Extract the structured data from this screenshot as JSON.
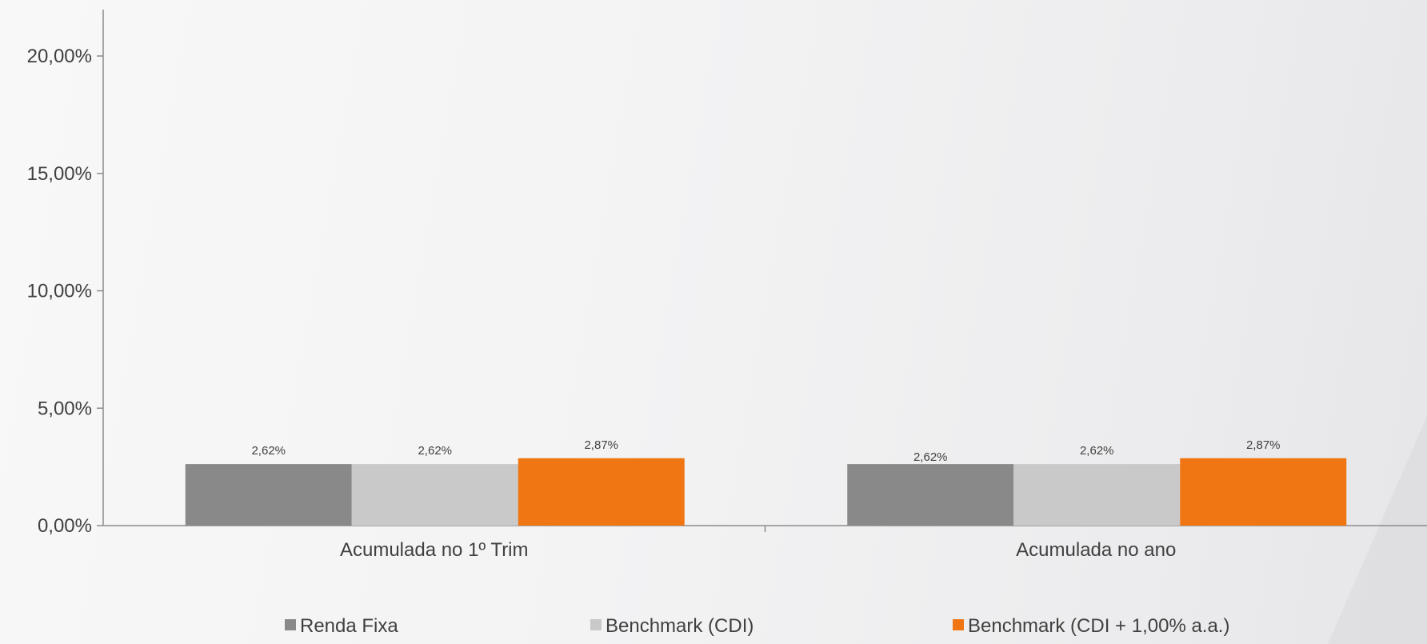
{
  "chart_data": {
    "type": "bar",
    "categories": [
      "Acumulada no 1º Trim",
      "Acumulada no ano"
    ],
    "series": [
      {
        "name": "Renda Fixa",
        "color": "#898989",
        "values": [
          2.62,
          2.62
        ],
        "labels": [
          "2,62%",
          "2,62%"
        ]
      },
      {
        "name": "Benchmark (CDI)",
        "color": "#c9c9c9",
        "values": [
          2.62,
          2.62
        ],
        "labels": [
          "2,62%",
          "2,62%"
        ]
      },
      {
        "name": "Benchmark (CDI + 1,00% a.a.)",
        "color": "#f07613",
        "values": [
          2.87,
          2.87
        ],
        "labels": [
          "2,87%",
          "2,87%"
        ]
      }
    ],
    "yticks": [
      0,
      5,
      10,
      15,
      20
    ],
    "ytick_labels": [
      "0,00%",
      "5,00%",
      "10,00%",
      "15,00%",
      "20,00%"
    ],
    "ylim": [
      0,
      22
    ],
    "grid": false,
    "legend_position": "bottom",
    "axis_color": "#8c8c8c"
  }
}
